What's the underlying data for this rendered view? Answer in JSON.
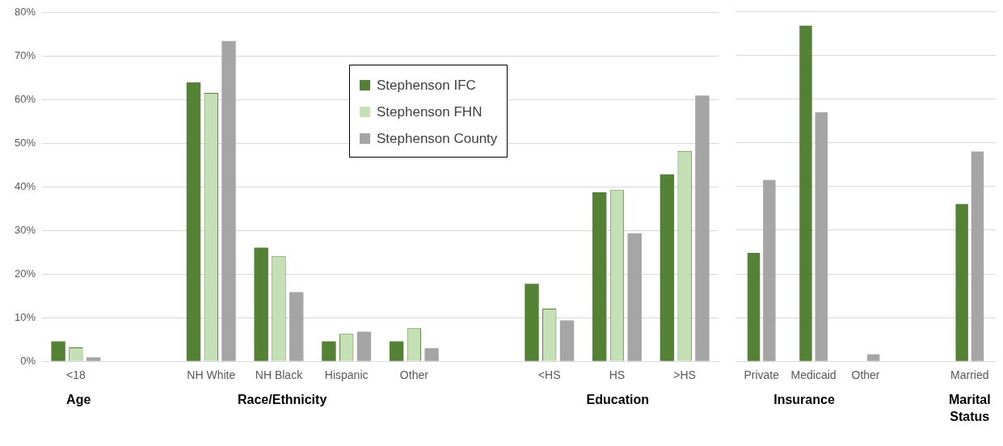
{
  "chart_data": [
    {
      "type": "bar",
      "categories": [
        "<18",
        null,
        "NH White",
        "NH Black",
        "Hispanic",
        "Other",
        null,
        "<HS",
        "HS",
        ">HS"
      ],
      "series": [
        {
          "name": "Stephenson IFC",
          "color": "#548235",
          "values": [
            4.6,
            null,
            64,
            26.1,
            4.6,
            4.6,
            null,
            17.8,
            38.8,
            42.9
          ]
        },
        {
          "name": "Stephenson FHN",
          "color": "#c5e0b4",
          "values": [
            3.2,
            null,
            61.6,
            24.1,
            6.3,
            7.6,
            null,
            12.1,
            39.3,
            48.3
          ]
        },
        {
          "name": "Stephenson County",
          "color": "#a5a5a5",
          "values": [
            0.9,
            null,
            73.5,
            15.9,
            6.8,
            3,
            null,
            9.4,
            29.4,
            61
          ]
        }
      ],
      "ylim": [
        0,
        80
      ],
      "yticks": [
        {
          "value": 0,
          "label": "0%"
        },
        {
          "value": 10,
          "label": "10%"
        },
        {
          "value": 20,
          "label": "20%"
        },
        {
          "value": 30,
          "label": "30%"
        },
        {
          "value": 40,
          "label": "40%"
        },
        {
          "value": 50,
          "label": "50%"
        },
        {
          "value": 60,
          "label": "60%"
        },
        {
          "value": 70,
          "label": "70%"
        },
        {
          "value": 80,
          "label": "80%"
        }
      ],
      "grid": "y",
      "legend": "top",
      "annotations": [
        "Age",
        "Race/Ethnicity",
        "Education"
      ]
    },
    {
      "type": "bar",
      "categories": [
        "Private",
        "Medicaid",
        "Other",
        null,
        "Married"
      ],
      "series": [
        {
          "color": "#548235",
          "values": [
            24.8,
            76.8,
            null,
            null,
            36
          ]
        },
        {
          "color": "#a5a5a5",
          "values": [
            41.5,
            57,
            1.6,
            null,
            48
          ]
        }
      ],
      "ylim": [
        0,
        80
      ],
      "yticks": [
        0,
        10,
        20,
        30,
        40,
        50,
        60,
        70,
        80
      ],
      "grid": "y",
      "tick_labels": "x",
      "annotations": [
        "Insurance",
        "Marital Status"
      ]
    }
  ]
}
